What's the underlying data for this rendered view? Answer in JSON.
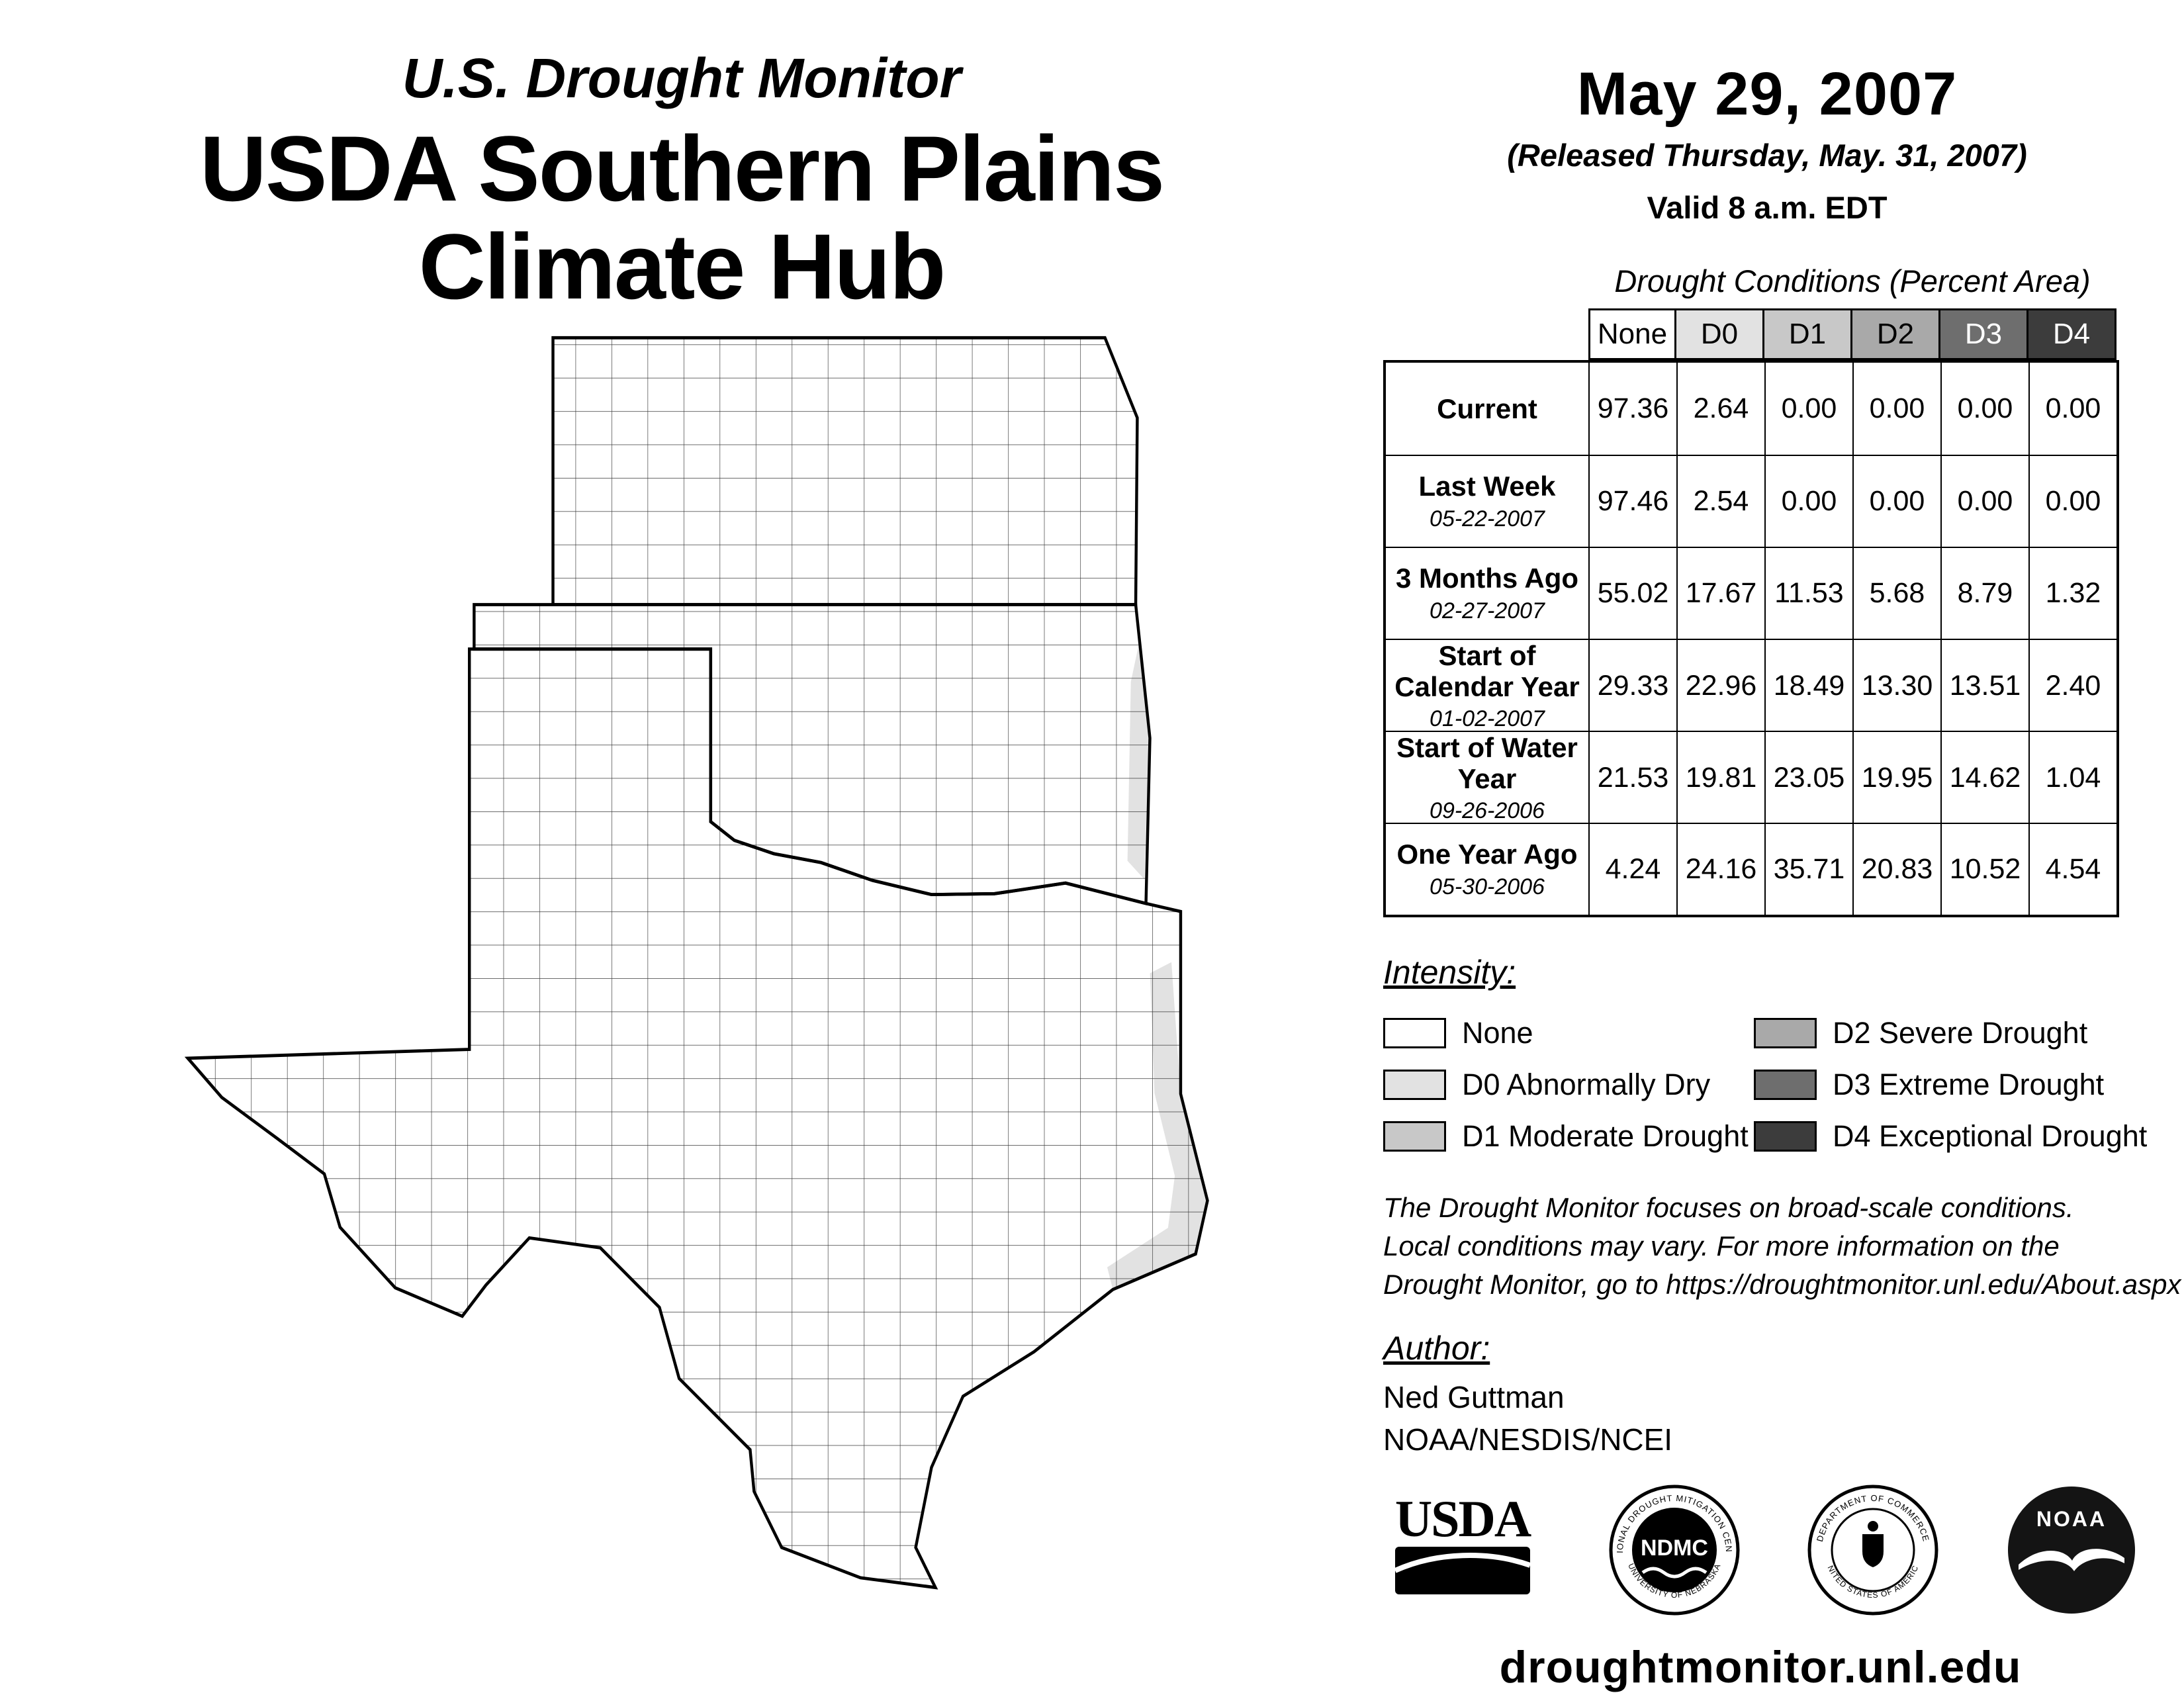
{
  "header": {
    "subtitle": "U.S. Drought Monitor",
    "title_line1": "USDA Southern Plains",
    "title_line2": "Climate Hub"
  },
  "release": {
    "date": "May 29, 2007",
    "released": "(Released Thursday, May. 31, 2007)",
    "valid": "Valid 8 a.m. EDT"
  },
  "table": {
    "title": "Drought Conditions (Percent Area)",
    "columns": [
      "None",
      "D0",
      "D1",
      "D2",
      "D3",
      "D4"
    ],
    "rows": [
      {
        "label": "Current",
        "date": "",
        "values": [
          "97.36",
          "2.64",
          "0.00",
          "0.00",
          "0.00",
          "0.00"
        ]
      },
      {
        "label": "Last Week",
        "date": "05-22-2007",
        "values": [
          "97.46",
          "2.54",
          "0.00",
          "0.00",
          "0.00",
          "0.00"
        ]
      },
      {
        "label": "3 Months Ago",
        "date": "02-27-2007",
        "values": [
          "55.02",
          "17.67",
          "11.53",
          "5.68",
          "8.79",
          "1.32"
        ]
      },
      {
        "label": "Start of Calendar Year",
        "date": "01-02-2007",
        "values": [
          "29.33",
          "22.96",
          "18.49",
          "13.30",
          "13.51",
          "2.40"
        ]
      },
      {
        "label": "Start of Water Year",
        "date": "09-26-2006",
        "values": [
          "21.53",
          "19.81",
          "23.05",
          "19.95",
          "14.62",
          "1.04"
        ]
      },
      {
        "label": "One Year Ago",
        "date": "05-30-2006",
        "values": [
          "4.24",
          "24.16",
          "35.71",
          "20.83",
          "10.52",
          "4.54"
        ]
      }
    ]
  },
  "legend": {
    "heading": "Intensity:",
    "items": [
      {
        "code": "",
        "label": "None",
        "color": "#FFFFFF"
      },
      {
        "code": "D0",
        "label": "D0 Abnormally Dry",
        "color": "#E2E2E2"
      },
      {
        "code": "D1",
        "label": "D1 Moderate Drought",
        "color": "#C8C8C8"
      },
      {
        "code": "D2",
        "label": "D2 Severe Drought",
        "color": "#A9A9A9"
      },
      {
        "code": "D3",
        "label": "D3 Extreme Drought",
        "color": "#6E6E6E"
      },
      {
        "code": "D4",
        "label": "D4 Exceptional Drought",
        "color": "#3C3C3C"
      }
    ]
  },
  "disclaimer": "The Drought Monitor focuses on broad-scale conditions.\nLocal conditions may vary. For more information on the\nDrought Monitor, go to https://droughtmonitor.unl.edu/About.aspx",
  "author": {
    "heading": "Author:",
    "name": "Ned Guttman",
    "org": "NOAA/NESDIS/NCEI"
  },
  "logos": {
    "usda": {
      "text": "USDA"
    },
    "ndmc": {
      "text": "NDMC",
      "ring_top": "NATIONAL DROUGHT MITIGATION CENTER",
      "ring_bottom": "UNIVERSITY OF NEBRASKA"
    },
    "doc": {
      "ring_top": "DEPARTMENT OF COMMERCE",
      "ring_bottom": "UNITED STATES OF AMERICA"
    },
    "noaa": {
      "text": "NOAA"
    }
  },
  "footer": {
    "url": "droughtmonitor.unl.edu"
  }
}
